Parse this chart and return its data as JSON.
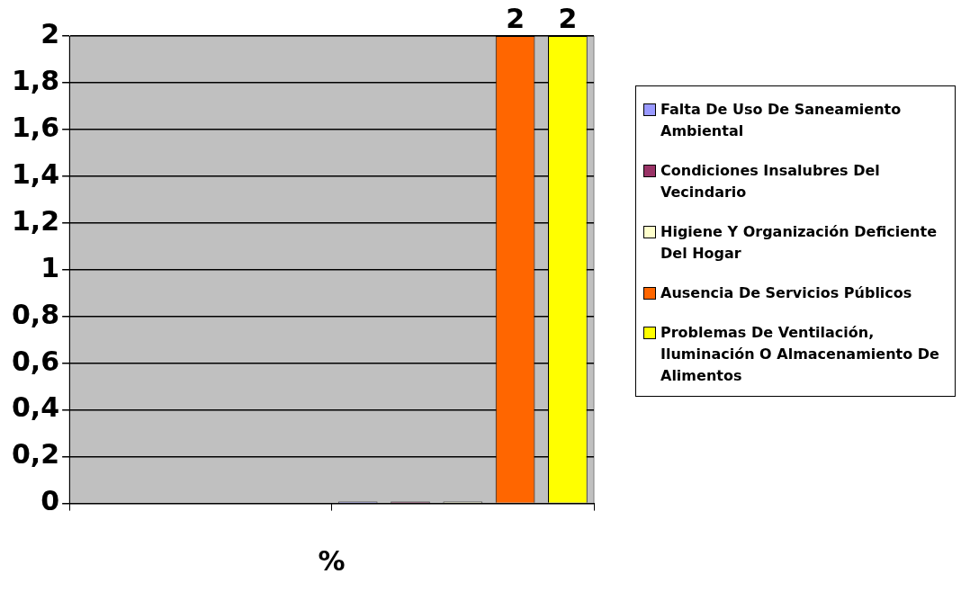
{
  "chart_data": {
    "type": "bar",
    "xlabel": "%",
    "categories": [
      null,
      null
    ],
    "series": [
      {
        "name": "Falta De Uso De Saneamiento Ambiental",
        "color": "#9999ff",
        "values": [
          null,
          0
        ]
      },
      {
        "name": "Condiciones  Insalubres  Del Vecindario",
        "color": "#993366",
        "values": [
          null,
          0
        ]
      },
      {
        "name": "Higiene Y Organización Deficiente Del Hogar",
        "color": "#ffffcc",
        "values": [
          null,
          0
        ]
      },
      {
        "name": "Ausencia De Servicios Públicos",
        "color": "#ff6600",
        "values": [
          null,
          2
        ],
        "value_labels": [
          null,
          "2"
        ]
      },
      {
        "name": "Problemas De Ventilación, Iluminación O Almacenamiento De Alimentos",
        "color": "#ffff00",
        "values": [
          null,
          2
        ],
        "value_labels": [
          null,
          "2"
        ]
      }
    ],
    "ylim": [
      0,
      2
    ],
    "yticks": [
      0,
      {
        "value": 0.2,
        "label": "0,2"
      },
      {
        "value": 0.4,
        "label": "0,4"
      },
      {
        "value": 0.6,
        "label": "0,6"
      },
      {
        "value": 0.8,
        "label": "0,8"
      },
      1,
      {
        "value": 1.2,
        "label": "1,2"
      },
      {
        "value": 1.4,
        "label": "1,4"
      },
      {
        "value": 1.6,
        "label": "1,6"
      },
      {
        "value": 1.8,
        "label": "1,8"
      },
      2
    ],
    "grid": "y",
    "legend": "right"
  }
}
